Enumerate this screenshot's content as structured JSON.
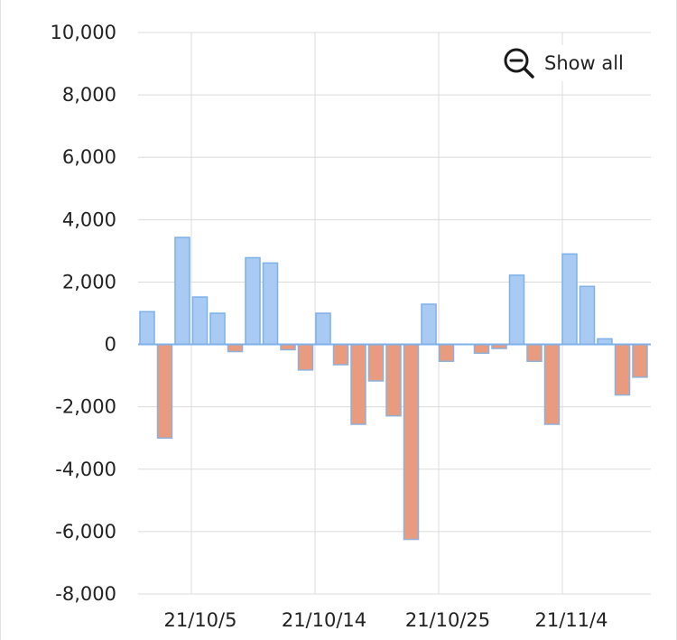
{
  "chart_data": {
    "type": "bar",
    "title": "",
    "xlabel": "",
    "ylabel": "",
    "ylim": [
      -8000,
      10000
    ],
    "y_ticks": [
      10000,
      8000,
      6000,
      4000,
      2000,
      0,
      -2000,
      -4000,
      -6000,
      -8000
    ],
    "y_tick_labels": [
      "10,000",
      "8,000",
      "6,000",
      "4,000",
      "2,000",
      "0",
      "-2,000",
      "-4,000",
      "-6,000",
      "-8,000"
    ],
    "x_tick_labels": [
      "21/10/5",
      "21/10/14",
      "21/10/25",
      "21/11/4"
    ],
    "grid": true,
    "positive_color": "#a9cbf3",
    "positive_edge": "#7fb0e8",
    "negative_color": "#e99b7f",
    "negative_edge": "#8fb0d8",
    "values": [
      1050,
      -3000,
      3430,
      1520,
      1000,
      -230,
      2780,
      2610,
      -170,
      -820,
      1000,
      -650,
      -2560,
      -1170,
      -2290,
      -6250,
      1290,
      -540,
      0,
      -280,
      -130,
      2220,
      -540,
      -2560,
      2900,
      1860,
      180,
      -1620,
      -1050
    ]
  },
  "controls": {
    "show_all_label": "Show all",
    "show_all_icon": "zoom-out-icon"
  }
}
